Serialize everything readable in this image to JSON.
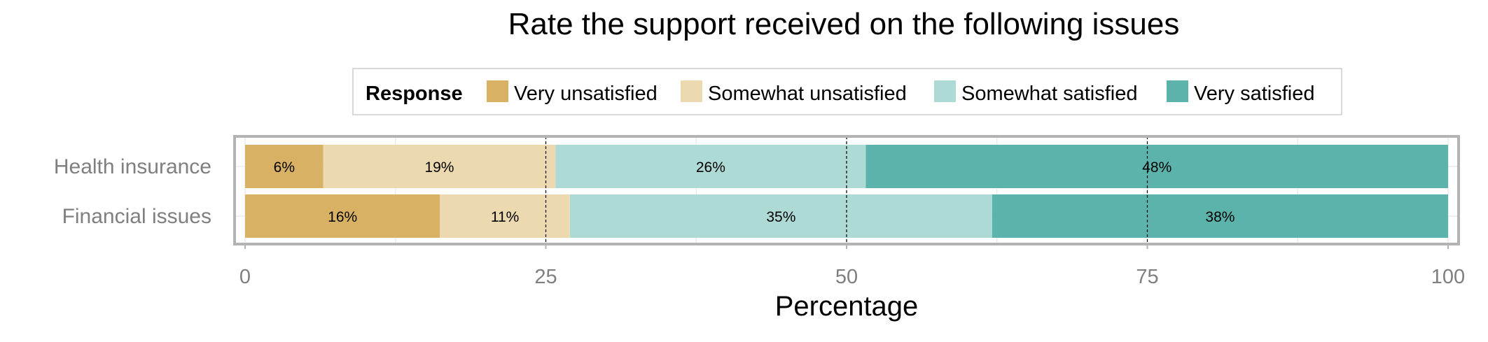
{
  "chart_data": {
    "type": "bar",
    "orientation": "horizontal",
    "stacked": true,
    "title": "Rate the support received on the following issues",
    "xlabel": "Percentage",
    "ylabel": "",
    "xlim": [
      0,
      100
    ],
    "xticks": [
      0,
      25,
      50,
      75,
      100
    ],
    "reference_lines": [
      25,
      50,
      75
    ],
    "grid": true,
    "legend": {
      "title": "Response",
      "position": "top"
    },
    "categories": [
      "Health insurance",
      "Financial issues"
    ],
    "series": [
      {
        "name": "Very unsatisfied",
        "color": "#D8B165",
        "values": [
          6.5,
          16.2
        ],
        "labels": [
          "6%",
          "16%"
        ]
      },
      {
        "name": "Somewhat unsatisfied",
        "color": "#ECD9B0",
        "values": [
          19.3,
          10.8
        ],
        "labels": [
          "19%",
          "11%"
        ]
      },
      {
        "name": "Somewhat satisfied",
        "color": "#AEDAD6",
        "values": [
          25.8,
          35.1
        ],
        "labels": [
          "26%",
          "35%"
        ]
      },
      {
        "name": "Very satisfied",
        "color": "#5BB3AB",
        "values": [
          48.4,
          37.9
        ],
        "labels": [
          "48%",
          "38%"
        ]
      }
    ]
  }
}
